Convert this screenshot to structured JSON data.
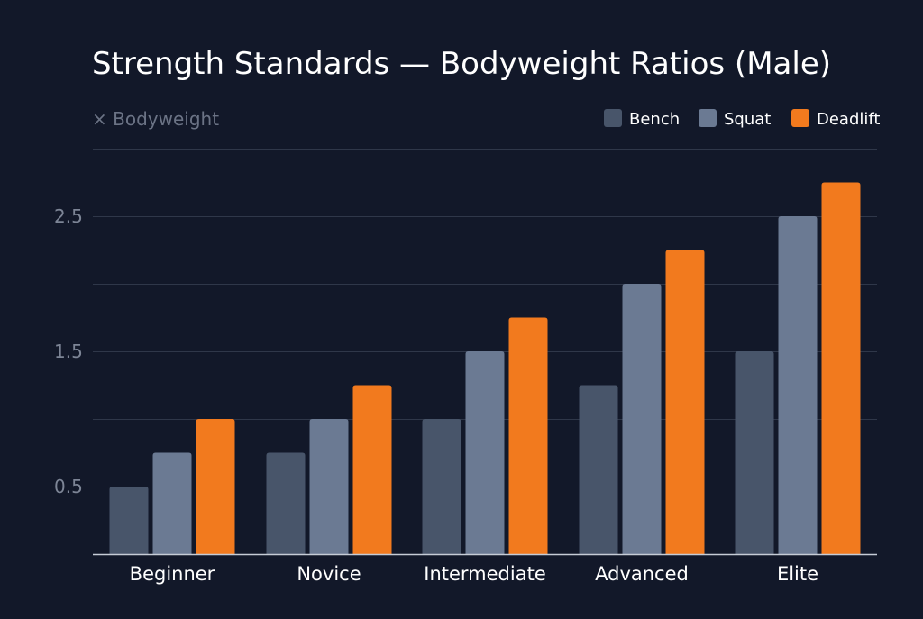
{
  "chart_data": {
    "type": "bar",
    "title": "Strength Standards — Bodyweight Ratios (Male)",
    "ylabel": "× Bodyweight",
    "xlabel": "",
    "categories": [
      "Beginner",
      "Novice",
      "Intermediate",
      "Advanced",
      "Elite"
    ],
    "series": [
      {
        "name": "Bench",
        "color": "#48556a",
        "values": [
          0.5,
          0.75,
          1.0,
          1.25,
          1.5
        ]
      },
      {
        "name": "Squat",
        "color": "#6b7a93",
        "values": [
          0.75,
          1.0,
          1.5,
          2.0,
          2.5
        ]
      },
      {
        "name": "Deadlift",
        "color": "#f27a1e",
        "values": [
          1.0,
          1.25,
          1.75,
          2.25,
          2.75
        ]
      }
    ],
    "ylim": [
      0,
      3.0
    ],
    "yticks": [
      "0.5",
      "1.5",
      "2.5"
    ],
    "gridlines": [
      0.5,
      1.0,
      1.5,
      2.0,
      2.5,
      3.0
    ],
    "grid": true,
    "legend_position": "top-right"
  }
}
